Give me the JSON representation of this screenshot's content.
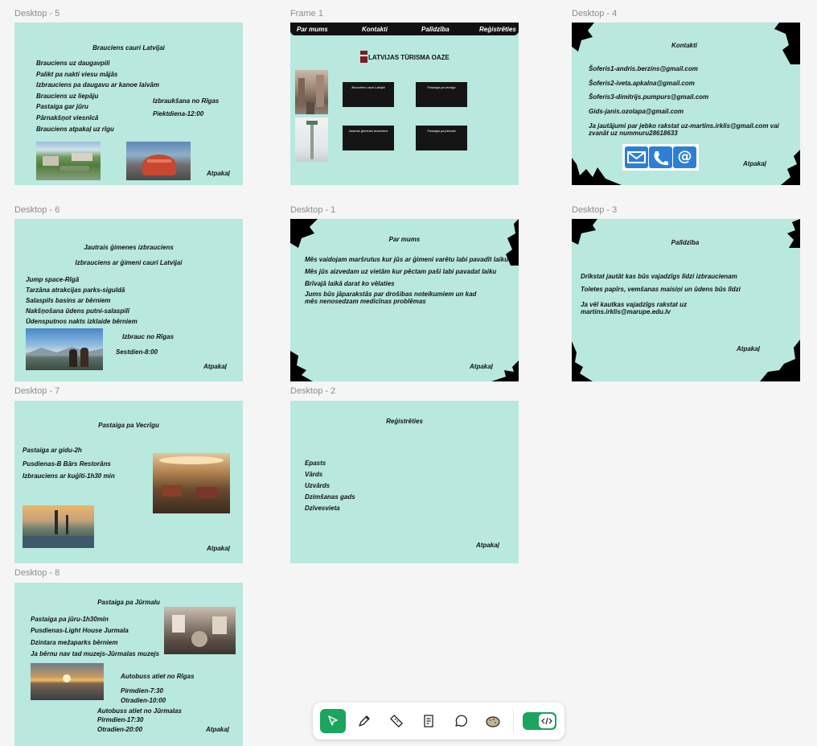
{
  "frames": {
    "desktop5": {
      "label": "Desktop - 5",
      "title": "Brauciens cauri Latvijai",
      "items": [
        "Brauciens uz daugavpili",
        "Palikt pa nakti viesu mājās",
        "Izbrauciens pa daugavu ar kanoe laivām",
        "Brauciens uz liepāju",
        "Pastaiga gar jūru",
        "Pārnakšņot viesnīcā",
        "Brauciens atpakaļ uz rīgu"
      ],
      "departure": "Izbraukšana no Rīgas",
      "time": "Piektdiena-12:00",
      "back": "Atpakaļ"
    },
    "frame1": {
      "label": "Frame 1",
      "nav": [
        "Par mums",
        "Kontakti",
        "Palīdzība",
        "Reģistrēties"
      ],
      "logo": "LATVIJAS TŪRISMA OAZE",
      "buttons": [
        "Brauciens cauri Latvijai",
        "Pastaiga pa vecrīgu",
        "Jautrais ģimenes brauciens",
        "Pastaiga pa jūrmalu"
      ]
    },
    "desktop4": {
      "label": "Desktop - 4",
      "title": "Kontakti",
      "items": [
        "Šoferis1-andris.berzins@gmail.com",
        "Šoferis2-iveta.apkalna@gmail.com",
        "Šoferis3-dimitrijs.pumpurs@gmail.com",
        "Gids-janis.ozolapa@gmail.com"
      ],
      "note": "Ja jautājumi par jebko rakstat uz-martins.irklis@gmail.com vai zvanāt uz nummuru28618633",
      "back": "Atpakaļ"
    },
    "desktop6": {
      "label": "Desktop - 6",
      "title": "Jautrais ģimenes izbrauciens",
      "subtitle": "Izbrauciens ar ģimeni cauri Latvijai",
      "items": [
        "Jump space-Rīgā",
        "Tarzāna atrakcijas parks-siguldā",
        "Salaspils basins ar bērniem",
        "Nakšņošana ūdens putni-salaspilī",
        "Ūdensputnos nakts izklaide bērniem"
      ],
      "departure": "Izbrauc no Rīgas",
      "time": "Sestdien-8:00",
      "back": "Atpakaļ"
    },
    "desktop1": {
      "label": "Desktop - 1",
      "title": "Par mums",
      "items": [
        "Mēs vaidojam maršrutus kur jūs ar ģimeni varētu labi pavadīt laiku",
        "Mēs jūs aizvedam uz vietām kur pēctam paši labi pavadat laiku",
        "Brīvajā laikā darat ko vēlaties",
        "Jums būs jāparakstās par drošibas noteikumiem un kad mēs nenosedzam medicīnas problēmas"
      ],
      "back": "Atpakaļ"
    },
    "desktop3": {
      "label": "Desktop - 3",
      "title": "Palīdzība",
      "items": [
        "Drīkstat jautāt kas būs vajadzīgs līdzi izbraucienam",
        "Toletes papīrs, vemšanas maisiņi un ūdens būs līdzi",
        "Ja vēl kautkas vajadzīgs rakstat uz martins.irklis@marupe.edu.lv"
      ],
      "back": "Atpakaļ"
    },
    "desktop7": {
      "label": "Desktop - 7",
      "title": "Pastaiga pa Vecrīgu",
      "items": [
        "Pastaiga ar gidu-2h",
        "Pusdienas-B Bārs Restorāns",
        "Izbrauciens ar kuģīti-1h30 min"
      ],
      "back": "Atpakaļ"
    },
    "desktop2": {
      "label": "Desktop - 2",
      "title": "Reģistrēties",
      "items": [
        "Epasts",
        "Vārds",
        "Uzvārds",
        "Dzimšanas gads",
        "Dzīvesvieta"
      ],
      "back": "Atpakaļ"
    },
    "desktop8": {
      "label": "Desktop - 8",
      "title": "Pastaiga pa Jūrmalu",
      "items": [
        "Pastaiga pa jūru-1h30min",
        "Pusdienas-Light House Jurmala",
        "Dzintara mežaparks bērniem",
        "Ja bērnu nav tad muzejs-Jūrmalas muzejs"
      ],
      "bus1": "Autobuss atiet no Rīgas",
      "bus1_t1": "Pirmdien-7:30",
      "bus1_t2": "Otradien-10:00",
      "bus2": "Autobuss atiet no Jūrmalas",
      "bus2_t1": "Pirmdien-17:30",
      "bus2_t2": "Otradien-20:00",
      "back": "Atpakaļ"
    }
  },
  "toolbar": {
    "tools": [
      "move-icon",
      "pen-icon",
      "ruler-icon",
      "text-annotation-icon",
      "comment-icon",
      "plugin-icon"
    ],
    "active": "move-icon",
    "dev_mode": "code-icon",
    "accent": "#1ba55e"
  },
  "colors": {
    "frame_bg": "#b8e8de",
    "canvas_bg": "#f5f5f5",
    "dark": "#111111"
  }
}
